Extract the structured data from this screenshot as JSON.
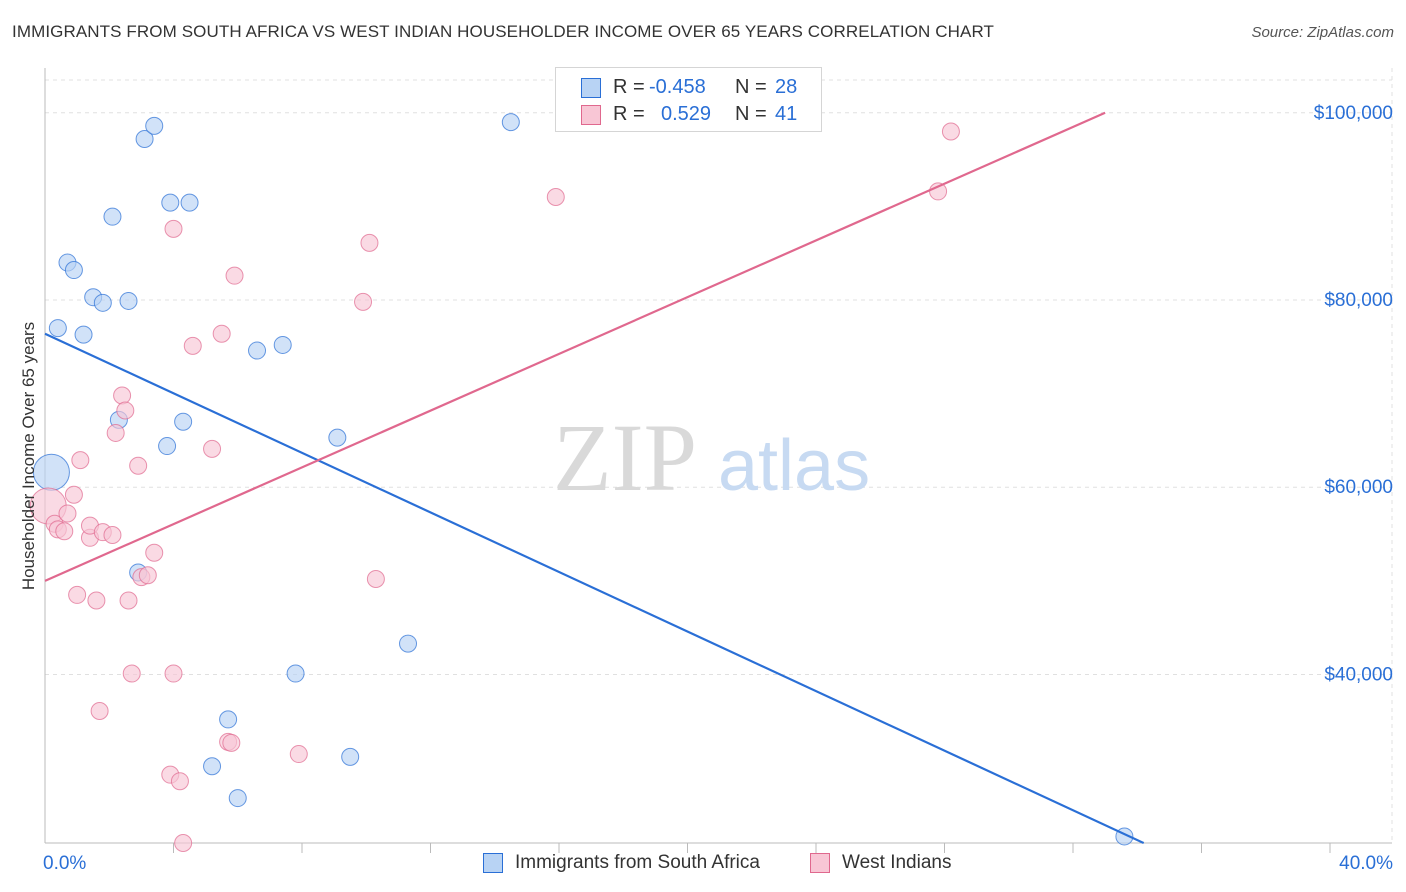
{
  "title": "IMMIGRANTS FROM SOUTH AFRICA VS WEST INDIAN HOUSEHOLDER INCOME OVER 65 YEARS CORRELATION CHART",
  "source": "Source: ZipAtlas.com",
  "watermark": {
    "zip": "ZIP",
    "atlas": "atlas"
  },
  "colors": {
    "blue": "#2a6fd6",
    "blue_fill": "#b8d3f4",
    "pink": "#e0688e",
    "pink_fill": "#f8c6d5",
    "grid": "#e0e0e0",
    "tick_label": "#2a6fd6"
  },
  "legend": {
    "series1": {
      "r_label": "R = ",
      "r_value": "-0.458",
      "n_label": "N = ",
      "n_value": "28"
    },
    "series2": {
      "r_label": "R = ",
      "r_value": "0.529",
      "n_label": "N = ",
      "n_value": "41"
    }
  },
  "chart_data": {
    "type": "scatter",
    "title": "IMMIGRANTS FROM SOUTH AFRICA VS WEST INDIAN HOUSEHOLDER INCOME OVER 65 YEARS CORRELATION CHART",
    "xlabel": "",
    "ylabel": "Householder Income Over 65 years",
    "xlim": [
      0,
      40
    ],
    "ylim": [
      22000,
      103500
    ],
    "x_tick_labels": [
      "0.0%",
      "40.0%"
    ],
    "y_ticks": [
      40000,
      60000,
      80000,
      100000
    ],
    "y_tick_labels": [
      "$40,000",
      "$60,000",
      "$80,000",
      "$100,000"
    ],
    "grid": true,
    "series": [
      {
        "name": "Immigrants from South Africa",
        "color": "blue",
        "r": -0.458,
        "n": 28,
        "trend": {
          "x": [
            0,
            34.2
          ],
          "y": [
            76400,
            22000
          ]
        },
        "points": [
          {
            "x": 0.2,
            "y": 61600,
            "size": 18
          },
          {
            "x": 0.4,
            "y": 77000
          },
          {
            "x": 1.2,
            "y": 76300
          },
          {
            "x": 0.7,
            "y": 84000
          },
          {
            "x": 0.9,
            "y": 83200
          },
          {
            "x": 1.5,
            "y": 80300
          },
          {
            "x": 1.8,
            "y": 79700
          },
          {
            "x": 2.1,
            "y": 88900
          },
          {
            "x": 2.6,
            "y": 79900
          },
          {
            "x": 3.1,
            "y": 97200
          },
          {
            "x": 3.4,
            "y": 98600
          },
          {
            "x": 3.9,
            "y": 90400
          },
          {
            "x": 4.5,
            "y": 90400
          },
          {
            "x": 2.3,
            "y": 67200
          },
          {
            "x": 3.8,
            "y": 64400
          },
          {
            "x": 4.3,
            "y": 67000
          },
          {
            "x": 6.6,
            "y": 74600
          },
          {
            "x": 7.4,
            "y": 75200
          },
          {
            "x": 9.1,
            "y": 65300
          },
          {
            "x": 2.9,
            "y": 50900
          },
          {
            "x": 7.8,
            "y": 40100
          },
          {
            "x": 11.3,
            "y": 43300
          },
          {
            "x": 5.7,
            "y": 35200
          },
          {
            "x": 5.2,
            "y": 30200
          },
          {
            "x": 6.0,
            "y": 26800
          },
          {
            "x": 9.5,
            "y": 31200
          },
          {
            "x": 14.5,
            "y": 99000
          },
          {
            "x": 33.6,
            "y": 22700
          }
        ]
      },
      {
        "name": "West Indians",
        "color": "pink",
        "r": 0.529,
        "n": 41,
        "trend": {
          "x": [
            0,
            33.0
          ],
          "y": [
            50000,
            100000
          ]
        },
        "points": [
          {
            "x": 0.1,
            "y": 58000,
            "size": 18
          },
          {
            "x": 0.3,
            "y": 56100
          },
          {
            "x": 0.4,
            "y": 55500
          },
          {
            "x": 0.6,
            "y": 55300
          },
          {
            "x": 0.7,
            "y": 57200
          },
          {
            "x": 0.9,
            "y": 59200
          },
          {
            "x": 1.1,
            "y": 62900
          },
          {
            "x": 1.4,
            "y": 54600
          },
          {
            "x": 1.4,
            "y": 55900
          },
          {
            "x": 1.8,
            "y": 55200
          },
          {
            "x": 2.1,
            "y": 54900
          },
          {
            "x": 2.2,
            "y": 65800
          },
          {
            "x": 2.4,
            "y": 69800
          },
          {
            "x": 2.5,
            "y": 68200
          },
          {
            "x": 2.9,
            "y": 62300
          },
          {
            "x": 3.0,
            "y": 50400
          },
          {
            "x": 3.2,
            "y": 50600
          },
          {
            "x": 3.4,
            "y": 53000
          },
          {
            "x": 1.0,
            "y": 48500
          },
          {
            "x": 1.6,
            "y": 47900
          },
          {
            "x": 2.6,
            "y": 47900
          },
          {
            "x": 4.0,
            "y": 87600
          },
          {
            "x": 4.6,
            "y": 75100
          },
          {
            "x": 5.5,
            "y": 76400
          },
          {
            "x": 5.2,
            "y": 64100
          },
          {
            "x": 5.9,
            "y": 82600
          },
          {
            "x": 10.1,
            "y": 86100
          },
          {
            "x": 9.9,
            "y": 79800
          },
          {
            "x": 10.3,
            "y": 50200
          },
          {
            "x": 15.9,
            "y": 91000
          },
          {
            "x": 27.8,
            "y": 91600
          },
          {
            "x": 28.2,
            "y": 98000
          },
          {
            "x": 2.7,
            "y": 40100
          },
          {
            "x": 4.0,
            "y": 40100
          },
          {
            "x": 1.7,
            "y": 36100
          },
          {
            "x": 5.7,
            "y": 32800
          },
          {
            "x": 5.8,
            "y": 32700
          },
          {
            "x": 7.9,
            "y": 31500
          },
          {
            "x": 3.9,
            "y": 29300
          },
          {
            "x": 4.2,
            "y": 28600
          },
          {
            "x": 4.3,
            "y": 22000
          }
        ]
      }
    ]
  }
}
